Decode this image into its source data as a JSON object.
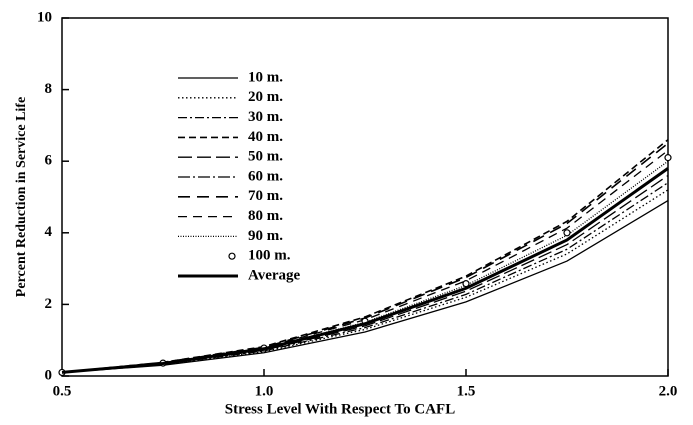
{
  "chart_data": {
    "type": "line",
    "x_label": "Stress Level With Respect To CAFL",
    "y_label": "Percent Reduction in Service Life",
    "x": [
      0.5,
      0.75,
      1.0,
      1.25,
      1.5,
      1.75,
      2.0
    ],
    "xlim": [
      0.5,
      2.0
    ],
    "xticks": [
      {
        "value": 0.5,
        "label": "0.5"
      },
      {
        "value": 1.0,
        "label": "1.0"
      },
      {
        "value": 1.5,
        "label": "1.5"
      },
      {
        "value": 2.0,
        "label": "2.0"
      }
    ],
    "ylim": [
      0,
      10
    ],
    "yticks": [
      0,
      2,
      4,
      6,
      8,
      10
    ],
    "grid": false,
    "legend": "upper-left",
    "series": [
      {
        "name": "10 m.",
        "color": "#000000",
        "dash": "solid",
        "values": [
          0.1,
          0.3,
          0.65,
          1.23,
          2.07,
          3.21,
          4.9
        ]
      },
      {
        "name": "20 m.",
        "color": "#000000",
        "dash": "dotted",
        "values": [
          0.1,
          0.31,
          0.68,
          1.3,
          2.2,
          3.41,
          5.2
        ]
      },
      {
        "name": "30 m.",
        "color": "#000000",
        "dash": "dashdot",
        "values": [
          0.1,
          0.33,
          0.7,
          1.35,
          2.28,
          3.54,
          5.4
        ]
      },
      {
        "name": "40 m.",
        "color": "#000000",
        "dash": "dashed",
        "values": [
          0.1,
          0.38,
          0.82,
          1.65,
          2.79,
          4.32,
          6.6
        ]
      },
      {
        "name": "50 m.",
        "color": "#000000",
        "dash": "longdash",
        "values": [
          0.1,
          0.34,
          0.72,
          1.4,
          2.37,
          3.67,
          5.6
        ]
      },
      {
        "name": "60 m.",
        "color": "#000000",
        "dash": "longdashdot",
        "values": [
          0.1,
          0.35,
          0.75,
          1.45,
          2.45,
          3.8,
          5.8
        ]
      },
      {
        "name": "70 m.",
        "color": "#000000",
        "dash": "longgap",
        "values": [
          0.1,
          0.38,
          0.8,
          1.62,
          2.75,
          4.26,
          6.5
        ]
      },
      {
        "name": "80 m.",
        "color": "#000000",
        "dash": "mediumdash",
        "values": [
          0.1,
          0.37,
          0.79,
          1.57,
          2.66,
          4.13,
          6.3
        ]
      },
      {
        "name": "90 m.",
        "color": "#000000",
        "dash": "densedot",
        "values": [
          0.1,
          0.36,
          0.77,
          1.5,
          2.53,
          3.93,
          6.0
        ]
      },
      {
        "name": "100 m.",
        "color": "#000000",
        "dash": "none",
        "marker": "circle",
        "values": [
          0.1,
          0.36,
          0.78,
          1.53,
          2.58,
          4.0,
          6.1
        ]
      },
      {
        "name": "Average",
        "color": "#000000",
        "dash": "thick",
        "values": [
          0.1,
          0.35,
          0.76,
          1.46,
          2.45,
          3.8,
          5.8
        ]
      }
    ]
  }
}
